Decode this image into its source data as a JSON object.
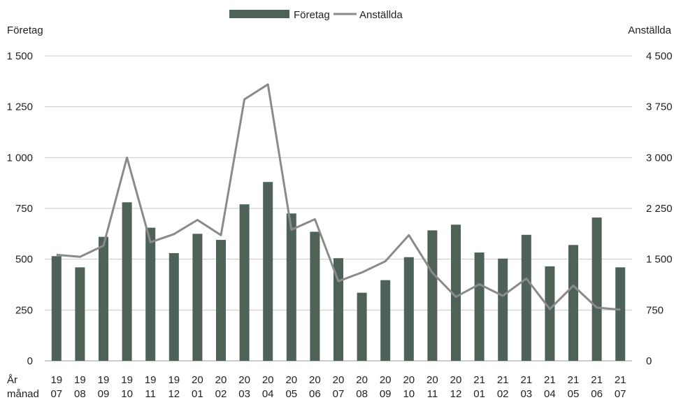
{
  "chart_data": {
    "type": "bar",
    "categories": [
      [
        "19",
        "07"
      ],
      [
        "19",
        "08"
      ],
      [
        "19",
        "09"
      ],
      [
        "19",
        "10"
      ],
      [
        "19",
        "11"
      ],
      [
        "19",
        "12"
      ],
      [
        "20",
        "01"
      ],
      [
        "20",
        "02"
      ],
      [
        "20",
        "03"
      ],
      [
        "20",
        "04"
      ],
      [
        "20",
        "05"
      ],
      [
        "20",
        "06"
      ],
      [
        "20",
        "07"
      ],
      [
        "20",
        "08"
      ],
      [
        "20",
        "09"
      ],
      [
        "20",
        "10"
      ],
      [
        "20",
        "11"
      ],
      [
        "20",
        "12"
      ],
      [
        "21",
        "01"
      ],
      [
        "21",
        "02"
      ],
      [
        "21",
        "03"
      ],
      [
        "21",
        "04"
      ],
      [
        "21",
        "05"
      ],
      [
        "21",
        "06"
      ],
      [
        "21",
        "07"
      ]
    ],
    "series": [
      {
        "name": "Företag",
        "type": "bar",
        "axis": "left",
        "color": "#4f6258",
        "values": [
          515,
          460,
          610,
          780,
          655,
          530,
          625,
          595,
          770,
          880,
          725,
          635,
          505,
          335,
          397,
          510,
          642,
          670,
          533,
          503,
          620,
          465,
          570,
          705,
          460
        ]
      },
      {
        "name": "Anställda",
        "type": "line",
        "axis": "right",
        "color": "#8a8a8a",
        "values": [
          1565,
          1535,
          1700,
          3000,
          1750,
          1870,
          2080,
          1855,
          3860,
          4080,
          1935,
          2090,
          1175,
          1305,
          1470,
          1855,
          1300,
          945,
          1130,
          960,
          1215,
          765,
          1110,
          785,
          755
        ]
      }
    ],
    "left_axis": {
      "title": "Företag",
      "ylim": [
        0,
        1500
      ],
      "ticks": [
        0,
        250,
        500,
        750,
        1000,
        1250,
        1500
      ],
      "tick_labels": [
        "0",
        "250",
        "500",
        "750",
        "1 000",
        "1 250",
        "1 500"
      ]
    },
    "right_axis": {
      "title": "Anställda",
      "ylim": [
        0,
        4500
      ],
      "ticks": [
        0,
        750,
        1500,
        2250,
        3000,
        3750,
        4500
      ],
      "tick_labels": [
        "0",
        "750",
        "1 500",
        "2 250",
        "3 000",
        "3 750",
        "4 500"
      ]
    },
    "x_axis_labels": [
      "År",
      "månad"
    ],
    "grid": true,
    "legend": "top-center"
  }
}
